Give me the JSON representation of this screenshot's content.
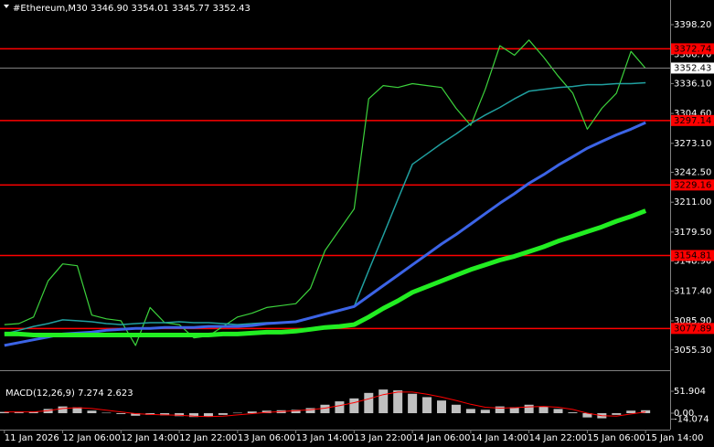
{
  "chart_data": [
    {
      "type": "line",
      "title": "#Ethereum,M30",
      "ohlc": "3346.90 3354.01 3345.77 3352.43",
      "categories": [
        "11 Jan 2026",
        null,
        null,
        null,
        "12 Jan 06:00",
        null,
        null,
        null,
        "12 Jan 14:00",
        null,
        null,
        null,
        "12 Jan 22:00",
        null,
        null,
        null,
        "13 Jan 06:00",
        null,
        null,
        null,
        "13 Jan 14:00",
        null,
        null,
        null,
        "13 Jan 22:00",
        null,
        null,
        null,
        "14 Jan 06:00",
        null,
        null,
        null,
        "14 Jan 14:00",
        null,
        null,
        null,
        "14 Jan 22:00",
        null,
        null,
        null,
        "15 Jan 06:00",
        null,
        null,
        null,
        "15 Jan 14:00"
      ],
      "series": [
        {
          "color": "#3cd23c",
          "width": 1.2,
          "values": [
            3082,
            3083,
            3090,
            3128,
            3146,
            3144,
            3092,
            3088,
            3086,
            3060,
            3100,
            3084,
            3082,
            3068,
            3070,
            3080,
            3090,
            3094,
            3100,
            3102,
            3104,
            3120,
            3160,
            3182,
            3204,
            3320,
            3334,
            3332,
            3336,
            3334,
            3332,
            3310,
            3292,
            3330,
            3376,
            3366,
            3382,
            3364,
            3344,
            3326,
            3288,
            3310,
            3326,
            3370,
            3352
          ]
        },
        {
          "color": "#20a0a0",
          "width": 1.5,
          "values": [
            3072,
            3076,
            3080,
            3083,
            3087,
            3086,
            3085,
            3083,
            3082,
            3083,
            3084,
            3084,
            3085,
            3084,
            3084,
            3083,
            3082,
            3083,
            3084,
            3084,
            3085,
            3089,
            3093,
            3097,
            3101,
            3139,
            3176,
            3214,
            3251,
            3262,
            3273,
            3283,
            3294,
            3303,
            3311,
            3320,
            3328,
            3330,
            3332,
            3333,
            3335,
            3335,
            3336,
            3336,
            3337
          ]
        },
        {
          "color": "#3c64e6",
          "width": 3,
          "values": [
            3060,
            3063,
            3066,
            3069,
            3072,
            3073,
            3074,
            3076,
            3077,
            3078,
            3078,
            3079,
            3079,
            3079,
            3080,
            3080,
            3080,
            3081,
            3083,
            3084,
            3085,
            3089,
            3093,
            3097,
            3101,
            3112,
            3123,
            3134,
            3145,
            3156,
            3167,
            3177,
            3188,
            3199,
            3210,
            3220,
            3231,
            3240,
            3250,
            3259,
            3268,
            3275,
            3282,
            3288,
            3295
          ]
        },
        {
          "color": "#22ee22",
          "width": 5,
          "values": [
            3072,
            3072,
            3071,
            3071,
            3071,
            3071,
            3071,
            3071,
            3071,
            3071,
            3071,
            3071,
            3071,
            3071,
            3071,
            3072,
            3072,
            3073,
            3074,
            3074,
            3075,
            3077,
            3079,
            3080,
            3082,
            3090,
            3099,
            3107,
            3116,
            3122,
            3128,
            3134,
            3140,
            3145,
            3150,
            3154,
            3159,
            3164,
            3170,
            3175,
            3180,
            3185,
            3191,
            3196,
            3202
          ]
        }
      ],
      "ylim": [
        3035.8,
        3424.2
      ],
      "yticks": [
        {
          "value": 3398.2,
          "label": "3398.20"
        },
        {
          "value": 3366.7,
          "label": "3366.70"
        },
        {
          "value": 3336.1,
          "label": "3336.10"
        },
        {
          "value": 3304.6,
          "label": "3304.60"
        },
        {
          "value": 3273.1,
          "label": "3273.10"
        },
        {
          "value": 3242.5,
          "label": "3242.50"
        },
        {
          "value": 3211,
          "label": "3211.00"
        },
        {
          "value": 3179.5,
          "label": "3179.50"
        },
        {
          "value": 3148.9,
          "label": "3148.90"
        },
        {
          "value": 3117.4,
          "label": "3117.40"
        },
        {
          "value": 3085.9,
          "label": "3085.90"
        },
        {
          "value": 3055.3,
          "label": "3055.30"
        }
      ],
      "levels": [
        3372.74,
        3297.14,
        3229.16,
        3154.81,
        3077.89
      ],
      "level_color": "#ff0000",
      "last_price": 3352.43,
      "grid": false
    },
    {
      "type": "bar",
      "title": "MACD(12,26,9)",
      "macd_value": 7.274,
      "signal_value": 2.623,
      "series": [
        {
          "type": "bar",
          "color": "#c0c0c0",
          "values": [
            3,
            2,
            4,
            10,
            16,
            14,
            6,
            1,
            -2,
            -6,
            -4,
            -5,
            -7,
            -9,
            -8,
            -4,
            1,
            4,
            6,
            7,
            8,
            12,
            20,
            28,
            35,
            48,
            56,
            54,
            46,
            38,
            30,
            20,
            10,
            8,
            16,
            14,
            20,
            16,
            10,
            2,
            -10,
            -12,
            -4,
            6,
            7
          ]
        },
        {
          "type": "line",
          "color": "#ff0000",
          "values": [
            3,
            3,
            3,
            6,
            11,
            13,
            11,
            7,
            3,
            -1,
            -3,
            -4,
            -5,
            -7,
            -8,
            -7,
            -4,
            -1,
            2,
            4,
            6,
            8,
            12,
            18,
            25,
            34,
            44,
            50,
            50,
            45,
            38,
            30,
            21,
            14,
            12,
            13,
            15,
            16,
            14,
            9,
            0,
            -6,
            -7,
            -2,
            3
          ]
        }
      ],
      "ylim": [
        -38.9,
        95.2
      ],
      "yticks": [
        51.904,
        {
          "value": 0,
          "label": "0.00"
        },
        -14.074
      ],
      "grid": false
    }
  ]
}
